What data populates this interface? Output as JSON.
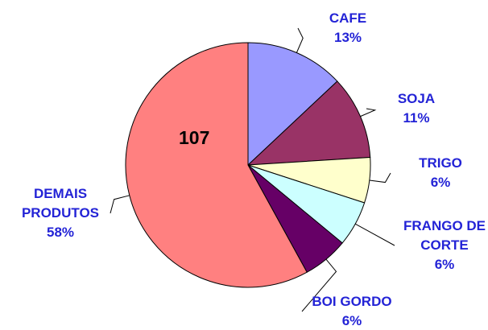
{
  "chart_data": {
    "type": "pie",
    "categories": [
      "CAFE",
      "SOJA",
      "TRIGO",
      "FRANGO DE CORTE",
      "BOI GORDO",
      "DEMAIS PRODUTOS"
    ],
    "values": [
      13,
      11,
      6,
      6,
      6,
      58
    ],
    "value_labels": [
      "13%",
      "11%",
      "6%",
      "6%",
      "6%",
      "58%"
    ],
    "colors": [
      "#9999ff",
      "#993366",
      "#ffffcc",
      "#ccffff",
      "#660066",
      "#ff8080"
    ],
    "annotation": "107"
  }
}
